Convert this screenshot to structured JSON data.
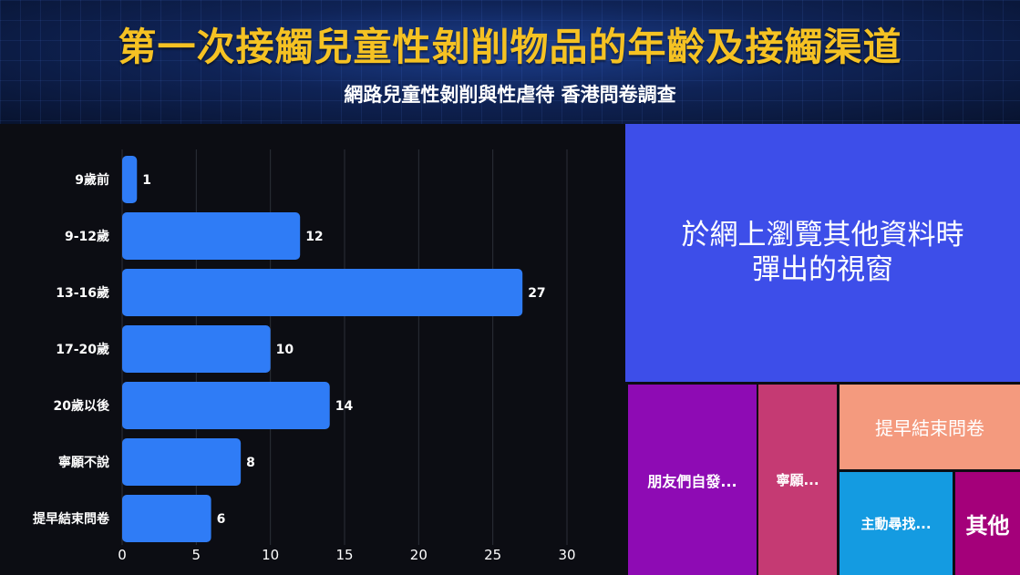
{
  "header": {
    "title": "第一次接觸兒童性剝削物品的年齡及接觸渠道",
    "subtitle": "網路兒童性剝削與性虐待 香港問卷調查"
  },
  "colors": {
    "title": "#f5c223",
    "bar": "#2f7cf6",
    "background": "#0c0d13"
  },
  "chart_data": [
    {
      "type": "bar",
      "orientation": "horizontal",
      "categories": [
        "9歲前",
        "9-12歲",
        "13-16歲",
        "17-20歲",
        "20歲以後",
        "寧願不說",
        "提早結束問卷"
      ],
      "values": [
        1,
        12,
        27,
        10,
        14,
        8,
        6
      ],
      "xticks": [
        "0",
        "5",
        "10",
        "15",
        "20",
        "25",
        "30"
      ],
      "xlim": [
        0,
        30
      ],
      "grid": true
    },
    {
      "type": "treemap",
      "tiles": [
        {
          "label": "於網上瀏覽其他資料時\n彈出的視窗",
          "color": "#3d4ee9"
        },
        {
          "label": "朋友們自發...",
          "color": "#8e0bb4"
        },
        {
          "label": "寧願...",
          "color": "#c53a73"
        },
        {
          "label": "提早結束問卷",
          "color": "#f49a7e"
        },
        {
          "label": "主動尋找...",
          "color": "#149be1"
        },
        {
          "label": "其他",
          "color": "#a4007a"
        }
      ]
    }
  ]
}
